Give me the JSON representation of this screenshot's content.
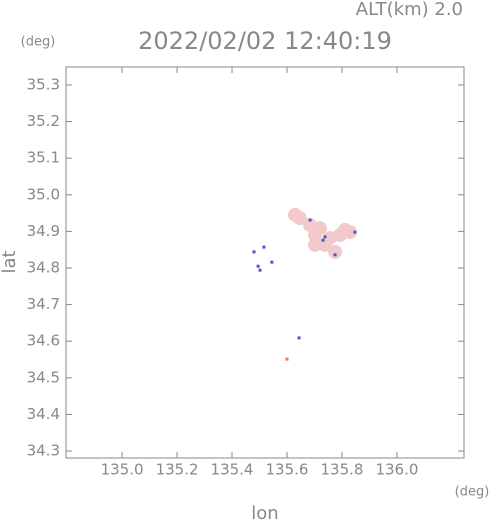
{
  "chart_data": {
    "type": "scatter",
    "title": "2022/02/02 12:40:19",
    "subtitle": "ALT(km) 2.0",
    "y_unit": "(deg)",
    "x_unit": "(deg)",
    "x_label": "lon",
    "y_label": "lat",
    "xlim": [
      134.796,
      136.244
    ],
    "ylim": [
      34.281,
      35.349
    ],
    "xticks": [
      {
        "value": 135,
        "label": "135.0"
      },
      135.2,
      135.4,
      135.6,
      135.8,
      {
        "value": 136,
        "label": "136.0"
      }
    ],
    "yticks": [
      35.3,
      35.2,
      35.1,
      {
        "value": 35,
        "label": "35.0"
      },
      34.9,
      34.8,
      34.7,
      34.6,
      34.5,
      34.4,
      34.3
    ],
    "series": [
      {
        "color": "#f4c9cc",
        "x": [
          135.629,
          135.647,
          135.684,
          135.702,
          135.738,
          135.775,
          135.72,
          135.811,
          135.829,
          135.756,
          135.793,
          135.702
        ],
        "values": [
          34.945,
          34.936,
          34.917,
          34.89,
          34.863,
          34.844,
          34.909,
          34.904,
          34.898,
          34.882,
          34.89,
          34.863
        ]
      },
      {
        "color": "#4a55d8",
        "x": [
          135.738,
          135.731,
          135.847,
          135.48,
          135.495,
          135.502,
          135.545,
          135.516,
          135.644,
          135.684,
          135.775
        ],
        "values": [
          34.885,
          34.876,
          34.898,
          34.844,
          34.805,
          34.794,
          34.816,
          34.857,
          34.609,
          34.931,
          34.836
        ]
      },
      {
        "color": "#f07a50",
        "x": [
          135.6
        ],
        "values": [
          34.551
        ]
      }
    ]
  }
}
